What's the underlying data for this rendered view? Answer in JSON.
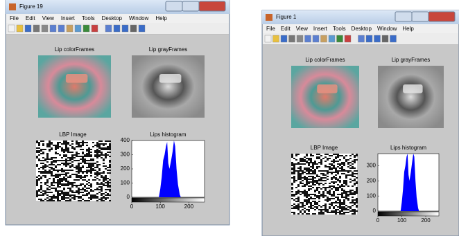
{
  "windows": [
    {
      "title": "Figure 19",
      "menu": [
        "File",
        "Edit",
        "View",
        "Insert",
        "Tools",
        "Desktop",
        "Window",
        "Help"
      ],
      "panels": {
        "color": "Lip colorFrames",
        "gray": "Lip grayFrames",
        "lbp": "LBP Image",
        "hist": "Lips histogram"
      },
      "histogram": {
        "xlim": [
          0,
          255
        ],
        "ylim": [
          0,
          400
        ],
        "xticks": [
          0,
          100,
          200
        ],
        "yticks": [
          0,
          100,
          200,
          300,
          400
        ]
      }
    },
    {
      "title": "Figure 1",
      "menu": [
        "File",
        "Edit",
        "View",
        "Insert",
        "Tools",
        "Desktop",
        "Window",
        "Help"
      ],
      "panels": {
        "color": "Lip colorFrames",
        "gray": "Lip grayFrames",
        "lbp": "LBP Image",
        "hist": "Lips histogram"
      },
      "histogram": {
        "xlim": [
          0,
          255
        ],
        "ylim": [
          0,
          380
        ],
        "xticks": [
          0,
          100,
          200
        ],
        "yticks": [
          0,
          100,
          200,
          300
        ]
      }
    }
  ]
}
